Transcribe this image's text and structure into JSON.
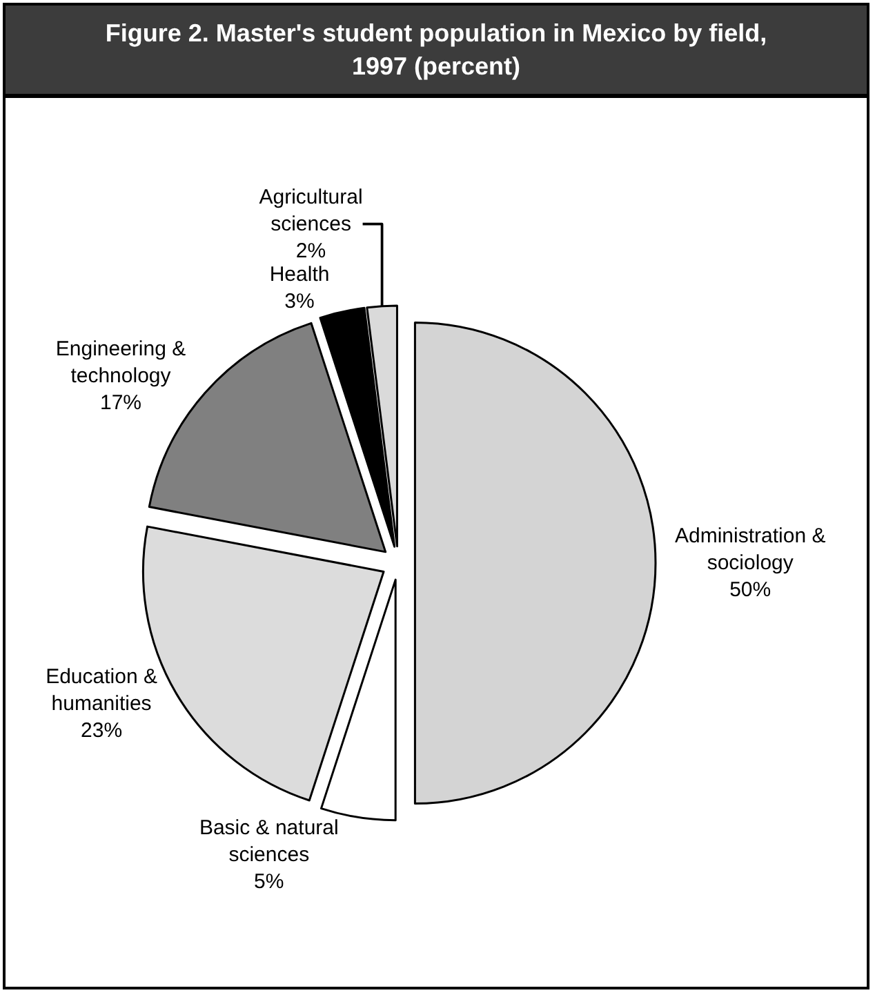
{
  "chart_data": {
    "type": "pie",
    "title": "Figure 2. Master's student population in Mexico by field, 1997 (percent)",
    "categories": [
      "Administration & sociology",
      "Basic & natural sciences",
      "Education & humanities",
      "Engineering & technology",
      "Health",
      "Agricultural sciences"
    ],
    "values": [
      50,
      5,
      23,
      17,
      3,
      2
    ],
    "value_labels": [
      "50%",
      "5%",
      "23%",
      "17%",
      "3%",
      "2%"
    ],
    "colors": [
      "#d4d4d4",
      "#ffffff",
      "#dcdcdc",
      "#808080",
      "#000000",
      "#dadada"
    ],
    "legend": false
  }
}
